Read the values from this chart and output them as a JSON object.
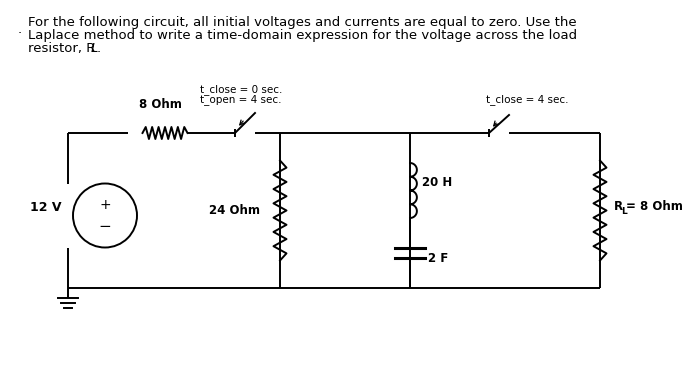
{
  "background_color": "#ffffff",
  "text_color": "#000000",
  "title_lines": [
    "For the following circuit, all initial voltages and currents are equal to zero. Use the",
    "Laplace method to write a time-domain expression for the voltage across the load",
    "resistor, R"
  ],
  "label_RL_italic": "L",
  "label_12V": "12 V",
  "label_plus": "+",
  "label_minus": "−",
  "label_8ohm": "8 Ohm",
  "label_24ohm": "24 Ohm",
  "label_20H": "20 H",
  "label_2F": "2 F",
  "label_RL": "R",
  "label_RL_sub": "L",
  "label_RL_val": "= 8 Ohm",
  "label_t_close1": "t_close = 0 sec.",
  "label_t_open": "t_open = 4 sec.",
  "label_t_close2": "t_close = 4 sec.",
  "dot_label": ".",
  "line_color": "#000000",
  "font_size_title": 9.5,
  "font_size_labels": 8.5,
  "font_size_small": 7.5
}
